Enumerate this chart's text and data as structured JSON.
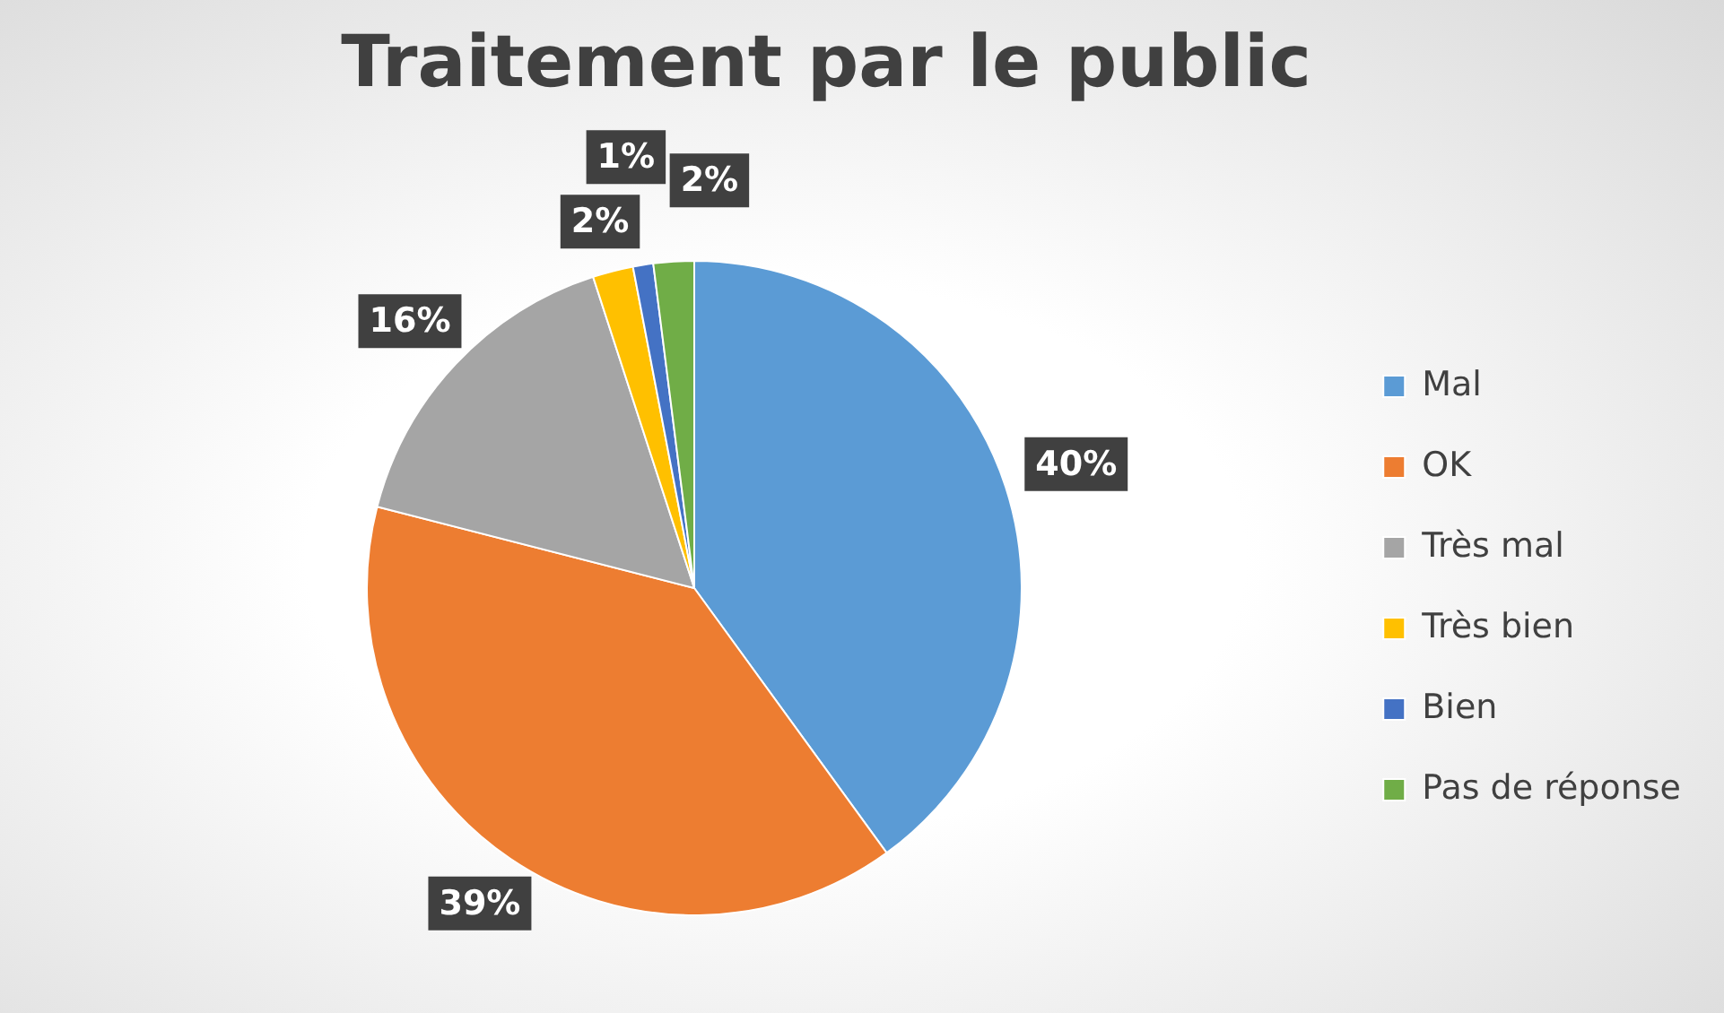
{
  "chart_data": {
    "type": "pie",
    "title": "Traitement par le public",
    "categories": [
      "Mal",
      "OK",
      "Très mal",
      "Très bien",
      "Bien",
      "Pas de réponse"
    ],
    "values": [
      40,
      39,
      16,
      2,
      1,
      2
    ],
    "value_labels": [
      "40%",
      "39%",
      "16%",
      "2%",
      "1%",
      "2%"
    ],
    "colors": [
      "#5b9bd5",
      "#ed7d31",
      "#a5a5a5",
      "#ffc000",
      "#4472c4",
      "#70ad47"
    ],
    "legend": "right"
  }
}
